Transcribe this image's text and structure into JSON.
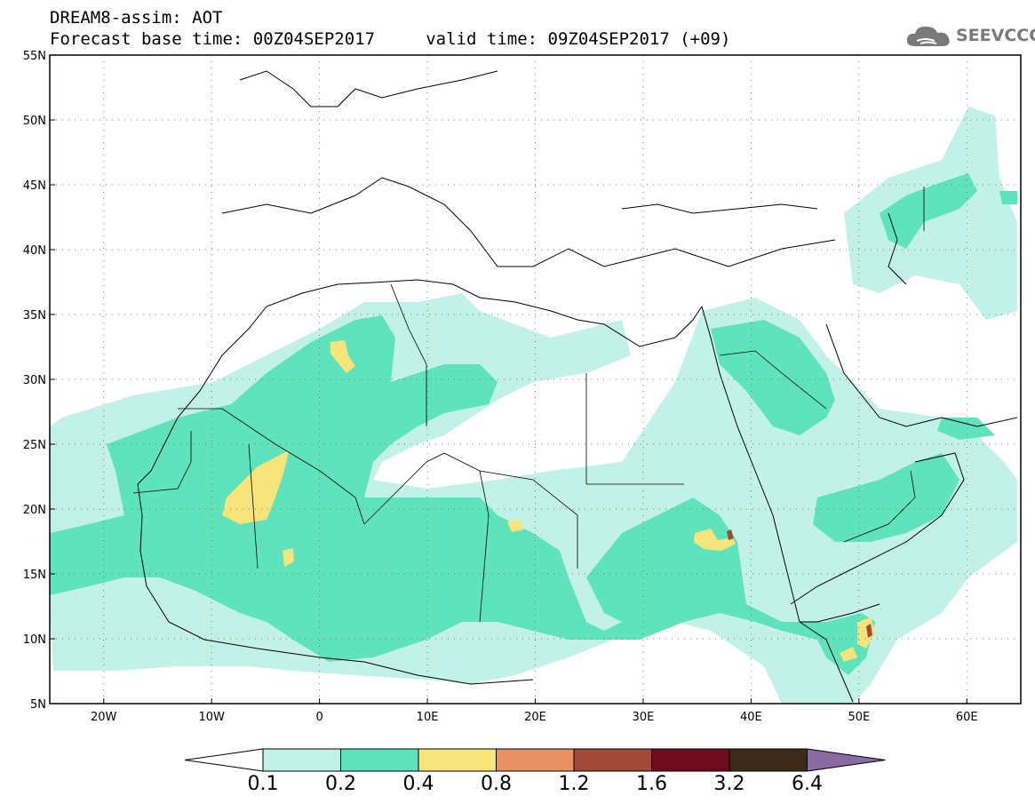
{
  "header": {
    "title_line1": "DREAM8-assim: AOT",
    "title_line2": "Forecast base time: 00Z04SEP2017     valid time: 09Z04SEP2017 (+09)",
    "brand": "SEEVCCC",
    "brand_icon": "cloud-icon",
    "brand_color": "#7a7a7a"
  },
  "map": {
    "lon_range": [
      -25,
      65
    ],
    "lat_range": [
      5,
      55
    ],
    "lat_ticks": [
      {
        "value": 55,
        "label": "55N"
      },
      {
        "value": 50,
        "label": "50N"
      },
      {
        "value": 45,
        "label": "45N"
      },
      {
        "value": 40,
        "label": "40N"
      },
      {
        "value": 35,
        "label": "35N"
      },
      {
        "value": 30,
        "label": "30N"
      },
      {
        "value": 25,
        "label": "25N"
      },
      {
        "value": 20,
        "label": "20N"
      },
      {
        "value": 15,
        "label": "15N"
      },
      {
        "value": 10,
        "label": "10N"
      },
      {
        "value": 5,
        "label": "5N"
      }
    ],
    "lon_ticks": [
      {
        "value": -20,
        "label": "20W"
      },
      {
        "value": -10,
        "label": "10W"
      },
      {
        "value": 0,
        "label": "0"
      },
      {
        "value": 10,
        "label": "10E"
      },
      {
        "value": 20,
        "label": "20E"
      },
      {
        "value": 30,
        "label": "30E"
      },
      {
        "value": 40,
        "label": "40E"
      },
      {
        "value": 50,
        "label": "50E"
      },
      {
        "value": 60,
        "label": "60E"
      }
    ],
    "grid": "dotted"
  },
  "colorbar": {
    "labels": [
      "0.1",
      "0.2",
      "0.4",
      "0.8",
      "1.2",
      "1.6",
      "3.2",
      "6.4"
    ],
    "colors": [
      "#ffffff",
      "#c2f1e8",
      "#5ee3bd",
      "#f7e47a",
      "#e89164",
      "#a24a3a",
      "#6e0c1f",
      "#3e2a18",
      "#8a6aa2"
    ]
  }
}
